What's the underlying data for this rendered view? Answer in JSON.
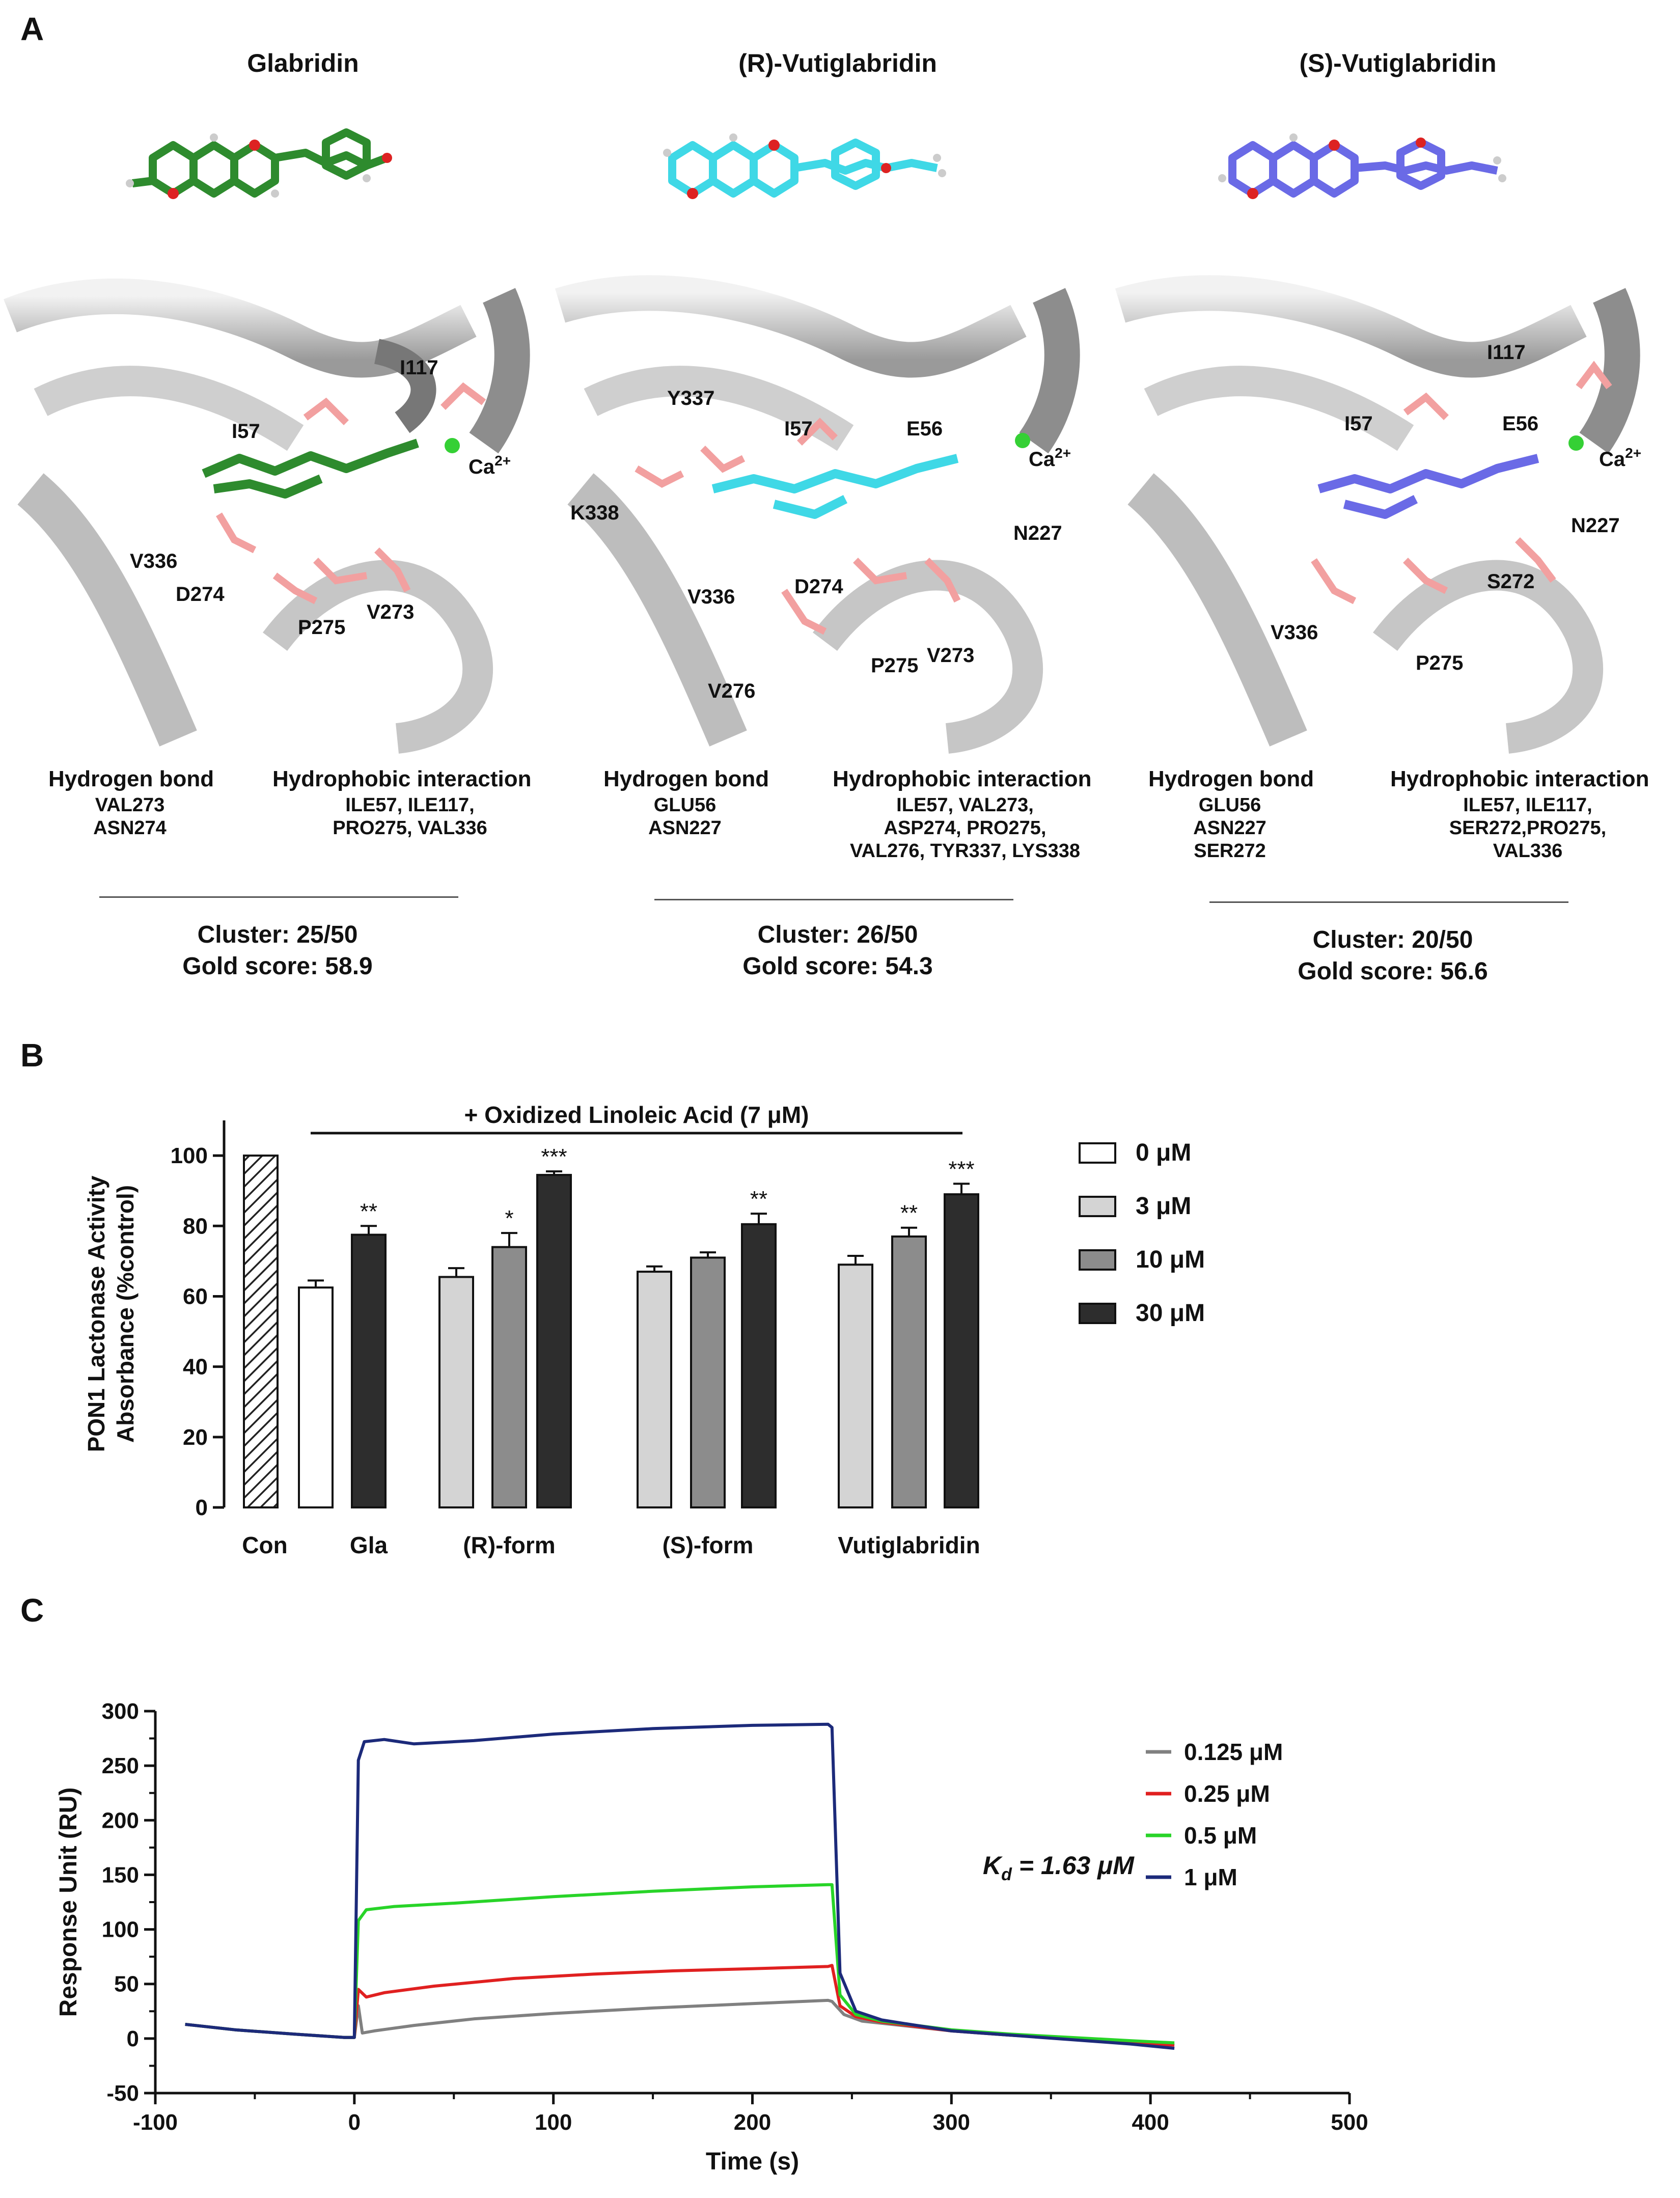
{
  "figure": {
    "panel_a": {
      "letter": "A",
      "columns": [
        {
          "title": "Glabridin",
          "residues": [
            "I117",
            "I57",
            "Ca2+",
            "V336",
            "D274",
            "P275",
            "V273"
          ],
          "hbond_head": "Hydrogen bond",
          "hbond": [
            "VAL273",
            "ASN274"
          ],
          "hydro_head": "Hydrophobic interaction",
          "hydro": [
            "ILE57, ILE117,",
            "PRO275, VAL336"
          ],
          "cluster": "Cluster: 25/50",
          "gold": "Gold score: 58.9",
          "ligand_color": "#2e8b2e"
        },
        {
          "title": "(R)-Vutiglabridin",
          "residues": [
            "Y337",
            "I57",
            "E56",
            "Ca2+",
            "K338",
            "N227",
            "V336",
            "D274",
            "P275",
            "V273",
            "V276"
          ],
          "hbond_head": "Hydrogen bond",
          "hbond": [
            "GLU56",
            "ASN227"
          ],
          "hydro_head": "Hydrophobic interaction",
          "hydro": [
            "ILE57, VAL273,",
            "ASP274, PRO275,",
            "VAL276, TYR337, LYS338"
          ],
          "cluster": "Cluster: 26/50",
          "gold": "Gold score: 54.3",
          "ligand_color": "#3fd8e6"
        },
        {
          "title": "(S)-Vutiglabridin",
          "residues": [
            "I117",
            "I57",
            "E56",
            "Ca2+",
            "N227",
            "S272",
            "V336",
            "P275"
          ],
          "hbond_head": "Hydrogen bond",
          "hbond": [
            "GLU56",
            "ASN227",
            "SER272"
          ],
          "hydro_head": "Hydrophobic interaction",
          "hydro": [
            "ILE57, ILE117,",
            "SER272,PRO275,",
            "VAL336"
          ],
          "cluster": "Cluster: 20/50",
          "gold": "Gold score: 56.6",
          "ligand_color": "#6a6ae6"
        }
      ]
    },
    "panel_b": {
      "letter": "B",
      "treatment_label": "+ Oxidized Linoleic Acid (7 μM)",
      "ylabel_line1": "PON1 Lactonase Activity",
      "ylabel_line2": "Absorbance (%control)",
      "legend": [
        {
          "label": "0 μM",
          "color": "#ffffff"
        },
        {
          "label": "3 μM",
          "color": "#d4d4d4"
        },
        {
          "label": "10 μM",
          "color": "#8c8c8c"
        },
        {
          "label": "30 μM",
          "color": "#2d2d2d"
        }
      ]
    },
    "panel_c": {
      "letter": "C",
      "kd_label": "K",
      "kd_sub": "d",
      "kd_value": " = 1.63 μM"
    }
  },
  "chart_data": [
    {
      "type": "bar",
      "title": "",
      "xlabel": "",
      "ylabel": "PON1 Lactonase Activity Absorbance (%control)",
      "ylim": [
        0,
        110
      ],
      "yticks": [
        0,
        20,
        40,
        60,
        80,
        100
      ],
      "groups": [
        "Con",
        "Gla",
        "(R)-form",
        "(S)-form",
        "Vutiglabridin"
      ],
      "bars": [
        {
          "group": "Con",
          "dose": "control",
          "value": 100,
          "err": 0,
          "sig": "",
          "fill": "hatch"
        },
        {
          "group": "Gla",
          "dose": "0 μM",
          "value": 62.5,
          "err": 2,
          "sig": "",
          "fill": "#ffffff"
        },
        {
          "group": "Gla",
          "dose": "30 μM",
          "value": 77.5,
          "err": 2.5,
          "sig": "**",
          "fill": "#2d2d2d"
        },
        {
          "group": "(R)-form",
          "dose": "3 μM",
          "value": 65.5,
          "err": 2.5,
          "sig": "",
          "fill": "#d4d4d4"
        },
        {
          "group": "(R)-form",
          "dose": "10 μM",
          "value": 74,
          "err": 4,
          "sig": "*",
          "fill": "#8c8c8c"
        },
        {
          "group": "(R)-form",
          "dose": "30 μM",
          "value": 94.5,
          "err": 1,
          "sig": "***",
          "fill": "#2d2d2d"
        },
        {
          "group": "(S)-form",
          "dose": "3 μM",
          "value": 67,
          "err": 1.5,
          "sig": "",
          "fill": "#d4d4d4"
        },
        {
          "group": "(S)-form",
          "dose": "10 μM",
          "value": 71,
          "err": 1.5,
          "sig": "",
          "fill": "#8c8c8c"
        },
        {
          "group": "(S)-form",
          "dose": "30 μM",
          "value": 80.5,
          "err": 3,
          "sig": "**",
          "fill": "#2d2d2d"
        },
        {
          "group": "Vutiglabridin",
          "dose": "3 μM",
          "value": 69,
          "err": 2.5,
          "sig": "",
          "fill": "#d4d4d4"
        },
        {
          "group": "Vutiglabridin",
          "dose": "10 μM",
          "value": 77,
          "err": 2.5,
          "sig": "**",
          "fill": "#8c8c8c"
        },
        {
          "group": "Vutiglabridin",
          "dose": "30 μM",
          "value": 89,
          "err": 3,
          "sig": "***",
          "fill": "#2d2d2d"
        }
      ]
    },
    {
      "type": "line",
      "title": "",
      "xlabel": "Time (s)",
      "ylabel": "Response Unit (RU)",
      "xlim": [
        -100,
        500
      ],
      "ylim": [
        -50,
        300
      ],
      "xticks": [
        -100,
        0,
        100,
        200,
        300,
        400,
        500
      ],
      "yticks": [
        -50,
        0,
        50,
        100,
        150,
        200,
        250,
        300
      ],
      "series": [
        {
          "name": "0.125 μM",
          "color": "#808080",
          "points": [
            [
              -85,
              13
            ],
            [
              -60,
              8
            ],
            [
              -30,
              4
            ],
            [
              -5,
              1
            ],
            [
              0,
              1
            ],
            [
              2,
              30
            ],
            [
              4,
              5
            ],
            [
              10,
              7
            ],
            [
              30,
              12
            ],
            [
              60,
              18
            ],
            [
              100,
              23
            ],
            [
              150,
              28
            ],
            [
              200,
              32
            ],
            [
              238,
              35
            ],
            [
              240,
              34
            ],
            [
              246,
              22
            ],
            [
              255,
              16
            ],
            [
              270,
              13
            ],
            [
              300,
              7
            ],
            [
              330,
              3
            ],
            [
              360,
              0
            ],
            [
              390,
              -4
            ],
            [
              412,
              -6
            ]
          ]
        },
        {
          "name": "0.25 μM",
          "color": "#e02020",
          "points": [
            [
              -85,
              13
            ],
            [
              -60,
              8
            ],
            [
              -30,
              4
            ],
            [
              -5,
              1
            ],
            [
              0,
              1
            ],
            [
              2,
              45
            ],
            [
              6,
              38
            ],
            [
              15,
              42
            ],
            [
              40,
              48
            ],
            [
              80,
              55
            ],
            [
              120,
              59
            ],
            [
              160,
              62
            ],
            [
              200,
              64
            ],
            [
              238,
              66
            ],
            [
              240,
              67
            ],
            [
              244,
              30
            ],
            [
              252,
              20
            ],
            [
              265,
              15
            ],
            [
              300,
              7
            ],
            [
              330,
              3
            ],
            [
              360,
              0
            ],
            [
              390,
              -4
            ],
            [
              412,
              -6
            ]
          ]
        },
        {
          "name": "0.5 μM",
          "color": "#28d428",
          "points": [
            [
              -85,
              13
            ],
            [
              -60,
              8
            ],
            [
              -30,
              4
            ],
            [
              -5,
              1
            ],
            [
              0,
              1
            ],
            [
              2,
              108
            ],
            [
              6,
              118
            ],
            [
              20,
              121
            ],
            [
              50,
              124
            ],
            [
              100,
              130
            ],
            [
              150,
              135
            ],
            [
              200,
              139
            ],
            [
              238,
              141
            ],
            [
              240,
              141
            ],
            [
              244,
              40
            ],
            [
              252,
              22
            ],
            [
              265,
              16
            ],
            [
              300,
              8
            ],
            [
              330,
              4
            ],
            [
              360,
              1
            ],
            [
              390,
              -2
            ],
            [
              412,
              -4
            ]
          ]
        },
        {
          "name": "1 μM",
          "color": "#1c2a7a",
          "points": [
            [
              -85,
              13
            ],
            [
              -60,
              8
            ],
            [
              -30,
              4
            ],
            [
              -5,
              1
            ],
            [
              0,
              1
            ],
            [
              2,
              255
            ],
            [
              5,
              272
            ],
            [
              15,
              274
            ],
            [
              30,
              270
            ],
            [
              60,
              273
            ],
            [
              100,
              279
            ],
            [
              150,
              284
            ],
            [
              200,
              287
            ],
            [
              238,
              288
            ],
            [
              240,
              285
            ],
            [
              244,
              60
            ],
            [
              252,
              25
            ],
            [
              265,
              17
            ],
            [
              300,
              7
            ],
            [
              330,
              3
            ],
            [
              360,
              -1
            ],
            [
              390,
              -5
            ],
            [
              412,
              -9
            ]
          ]
        }
      ]
    }
  ]
}
